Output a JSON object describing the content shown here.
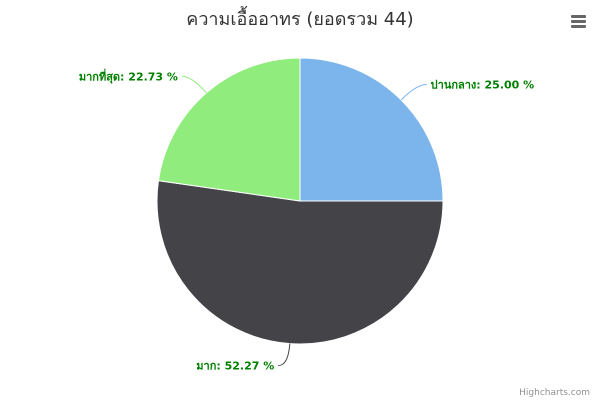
{
  "chart_data": {
    "type": "pie",
    "title": "ความเอื้ออาทร (ยอดรวม 44)",
    "slices": [
      {
        "name": "ปานกลาง",
        "percent": 25.0,
        "label": "ปานกลาง: 25.00 %",
        "color": "#7cb5ec"
      },
      {
        "name": "มาก",
        "percent": 52.27,
        "label": "มาก: 52.27 %",
        "color": "#434348"
      },
      {
        "name": "มากที่สุด",
        "percent": 22.73,
        "label": "มากที่สุด: 22.73 %",
        "color": "#90ed7d"
      }
    ],
    "label_color": "#008000",
    "start_angle_deg": 0,
    "legend": "none"
  },
  "credits": "Highcharts.com",
  "menu": {
    "icon": "hamburger-menu-icon"
  }
}
